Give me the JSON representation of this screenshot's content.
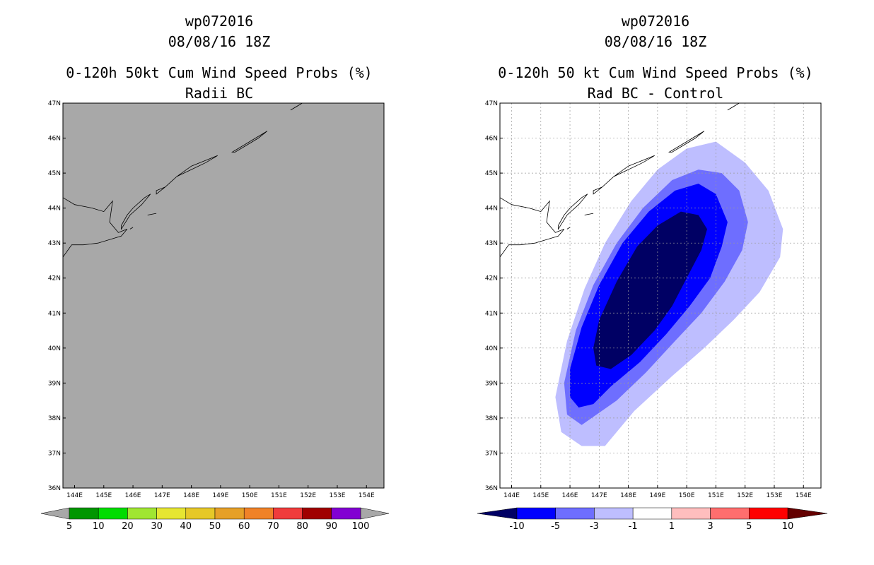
{
  "chart_data": [
    {
      "type": "contour-map",
      "title_lines": [
        "wp072016",
        "08/08/16 18Z",
        "0-120h 50kt Cum Wind Speed Probs (%)",
        "Radii BC"
      ],
      "x_ticks": [
        "144E",
        "145E",
        "146E",
        "147E",
        "148E",
        "149E",
        "150E",
        "151E",
        "152E",
        "153E",
        "154E"
      ],
      "y_ticks": [
        "47N",
        "46N",
        "45N",
        "44N",
        "43N",
        "42N",
        "41N",
        "40N",
        "39N",
        "38N",
        "37N",
        "36N"
      ],
      "x_range_deg_E": [
        143.6,
        154.6
      ],
      "y_range_deg_N": [
        36,
        47
      ],
      "background_value": "below 5%",
      "background_color": "#a8a8a8",
      "grid": false,
      "colorbar": {
        "labels": [
          "5",
          "10",
          "20",
          "30",
          "40",
          "50",
          "60",
          "70",
          "80",
          "90",
          "100"
        ],
        "colors": [
          "#009600",
          "#00dc00",
          "#a0e632",
          "#e6e632",
          "#e6c828",
          "#e6a028",
          "#f08228",
          "#f03c3c",
          "#a00000",
          "#8200d2"
        ],
        "end_color": "#a8a8a8"
      }
    },
    {
      "type": "contour-map",
      "title_lines": [
        "wp072016",
        "08/08/16 18Z",
        "0-120h 50 kt Cum Wind Speed Probs (%)",
        "Rad BC - Control"
      ],
      "x_ticks": [
        "144E",
        "145E",
        "146E",
        "147E",
        "148E",
        "149E",
        "150E",
        "151E",
        "152E",
        "153E",
        "154E"
      ],
      "y_ticks": [
        "47N",
        "46N",
        "45N",
        "44N",
        "43N",
        "42N",
        "41N",
        "40N",
        "39N",
        "38N",
        "37N",
        "36N"
      ],
      "x_range_deg_E": [
        143.6,
        154.6
      ],
      "y_range_deg_N": [
        36,
        47
      ],
      "grid": true,
      "contour_levels": [
        -10,
        -5,
        -3,
        -1
      ],
      "contours": [
        {
          "level": "-1 to -3",
          "color": "#bebeff",
          "polygon": [
            [
              147.2,
              37.2
            ],
            [
              146.4,
              37.2
            ],
            [
              145.7,
              37.6
            ],
            [
              145.5,
              38.6
            ],
            [
              145.9,
              40.2
            ],
            [
              146.5,
              41.7
            ],
            [
              147.2,
              43.0
            ],
            [
              148.1,
              44.2
            ],
            [
              149.0,
              45.1
            ],
            [
              150.0,
              45.7
            ],
            [
              151.0,
              45.9
            ],
            [
              152.0,
              45.3
            ],
            [
              152.8,
              44.5
            ],
            [
              153.3,
              43.4
            ],
            [
              153.2,
              42.6
            ],
            [
              152.5,
              41.6
            ],
            [
              151.6,
              40.8
            ],
            [
              150.6,
              40.0
            ],
            [
              149.5,
              39.2
            ],
            [
              148.2,
              38.2
            ]
          ]
        },
        {
          "level": "-3 to -5",
          "color": "#6e6eff",
          "polygon": [
            [
              146.4,
              37.8
            ],
            [
              145.9,
              38.1
            ],
            [
              145.8,
              39.0
            ],
            [
              146.2,
              40.5
            ],
            [
              146.8,
              41.8
            ],
            [
              147.6,
              43.0
            ],
            [
              148.5,
              44.0
            ],
            [
              149.5,
              44.8
            ],
            [
              150.4,
              45.1
            ],
            [
              151.2,
              45.0
            ],
            [
              151.8,
              44.5
            ],
            [
              152.1,
              43.6
            ],
            [
              151.9,
              42.8
            ],
            [
              151.3,
              41.9
            ],
            [
              150.5,
              41.0
            ],
            [
              149.6,
              40.2
            ],
            [
              148.6,
              39.3
            ],
            [
              147.6,
              38.5
            ]
          ]
        },
        {
          "level": "-5 to -10",
          "color": "#0000ff",
          "polygon": [
            [
              146.3,
              38.3
            ],
            [
              146.0,
              38.6
            ],
            [
              146.0,
              39.4
            ],
            [
              146.4,
              40.6
            ],
            [
              147.0,
              41.8
            ],
            [
              147.8,
              43.0
            ],
            [
              148.7,
              43.9
            ],
            [
              149.6,
              44.5
            ],
            [
              150.4,
              44.7
            ],
            [
              151.0,
              44.4
            ],
            [
              151.4,
              43.6
            ],
            [
              151.2,
              42.9
            ],
            [
              150.8,
              42.0
            ],
            [
              150.1,
              41.2
            ],
            [
              149.3,
              40.4
            ],
            [
              148.4,
              39.6
            ],
            [
              147.4,
              38.9
            ],
            [
              146.8,
              38.4
            ]
          ]
        },
        {
          "level": "< -10",
          "color": "#000064",
          "polygon": [
            [
              146.9,
              39.5
            ],
            [
              146.8,
              40.0
            ],
            [
              147.0,
              40.8
            ],
            [
              147.6,
              41.9
            ],
            [
              148.3,
              42.9
            ],
            [
              149.0,
              43.5
            ],
            [
              149.8,
              43.9
            ],
            [
              150.4,
              43.8
            ],
            [
              150.7,
              43.4
            ],
            [
              150.5,
              42.8
            ],
            [
              150.0,
              42.0
            ],
            [
              149.5,
              41.2
            ],
            [
              148.9,
              40.5
            ],
            [
              148.1,
              39.8
            ],
            [
              147.4,
              39.4
            ]
          ]
        }
      ],
      "colorbar": {
        "labels": [
          "-10",
          "-5",
          "-3",
          "-1",
          "1",
          "3",
          "5",
          "10"
        ],
        "colors": [
          "#000064",
          "#0000ff",
          "#6e6eff",
          "#bebeff",
          "#ffffff",
          "#ffbebe",
          "#ff6e6e",
          "#ff0000",
          "#640000"
        ]
      }
    }
  ]
}
